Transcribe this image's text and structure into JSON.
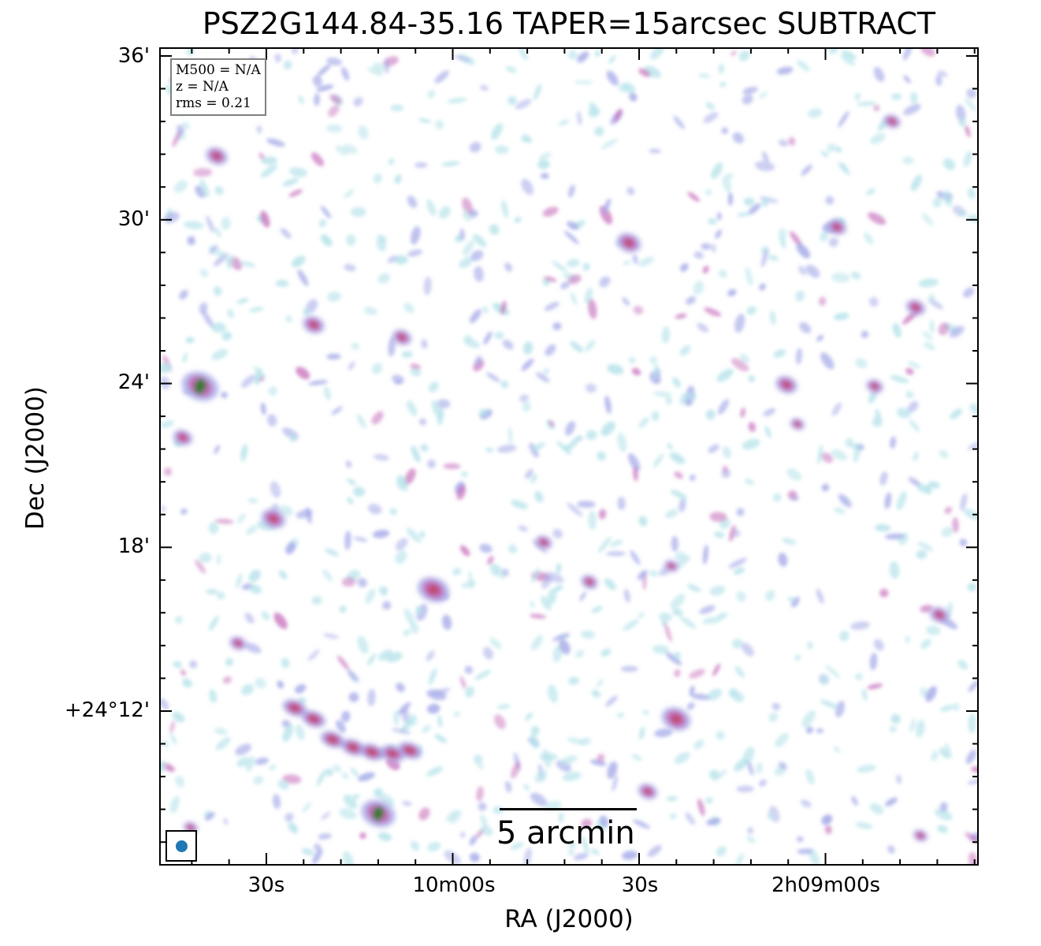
{
  "figure": {
    "title": "PSZ2G144.84-35.16 TAPER=15arcsec SUBTRACT",
    "xlabel": "RA (J2000)",
    "ylabel": "Dec (J2000)",
    "xticks": [
      "30s",
      "10m00s",
      "30s",
      "2h09m00s"
    ],
    "yticks": [
      "36'",
      "30'",
      "24'",
      "18'",
      "+24°12'"
    ]
  },
  "info": {
    "m500": "M500 = N/A",
    "z": "z = N/A",
    "rms": "rms = 0.21"
  },
  "scalebar": {
    "label": "5 arcmin"
  },
  "colors": {
    "background": "#ffffff",
    "noise_low": "#b7e3ea",
    "noise_mid": "#a6abe8",
    "source_mid": "#c468b8",
    "source_high": "#bd4a6e",
    "source_peak": "#2e7d2e",
    "beam": "#1f77b4"
  },
  "icons": {
    "beam": "beam-ellipse-icon"
  }
}
